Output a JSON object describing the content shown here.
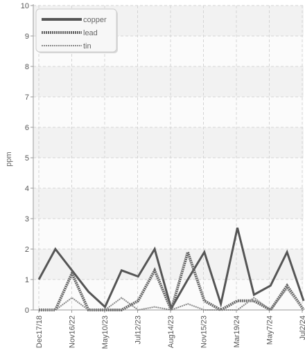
{
  "chart_data": {
    "type": "line",
    "title": "",
    "xlabel": "",
    "ylabel": "ppm",
    "ylim": [
      0,
      10
    ],
    "yticks": [
      0,
      1,
      2,
      3,
      4,
      5,
      6,
      7,
      8,
      9,
      10
    ],
    "xtick_labels": [
      "Dec17/18",
      "Nov16/22",
      "May10/23",
      "Jul12/23",
      "Aug14/23",
      "Nov15/23",
      "Mar19/24",
      "May7/24",
      "Jul2/24"
    ],
    "grid": true,
    "legend_position": "top-left",
    "series": [
      {
        "name": "copper",
        "color": "#555555",
        "style": "solid",
        "values": [
          1.0,
          2.0,
          1.3,
          0.6,
          0.1,
          1.3,
          1.1,
          2.0,
          0.05,
          1.0,
          1.9,
          0.2,
          2.7,
          0.5,
          0.8,
          1.9,
          0.3
        ]
      },
      {
        "name": "lead",
        "color": "#666666",
        "style": "dotted",
        "values": [
          0.0,
          0.0,
          1.2,
          0.0,
          0.0,
          0.0,
          0.3,
          1.3,
          0.0,
          1.9,
          0.3,
          0.0,
          0.3,
          0.3,
          0.0,
          0.8,
          0.0
        ]
      },
      {
        "name": "tin",
        "color": "#888888",
        "style": "dotted",
        "values": [
          0.0,
          0.0,
          0.4,
          0.0,
          0.0,
          0.4,
          0.0,
          0.1,
          0.0,
          0.2,
          0.0,
          0.0,
          0.0,
          0.4,
          0.0,
          0.7,
          0.0
        ]
      }
    ]
  }
}
